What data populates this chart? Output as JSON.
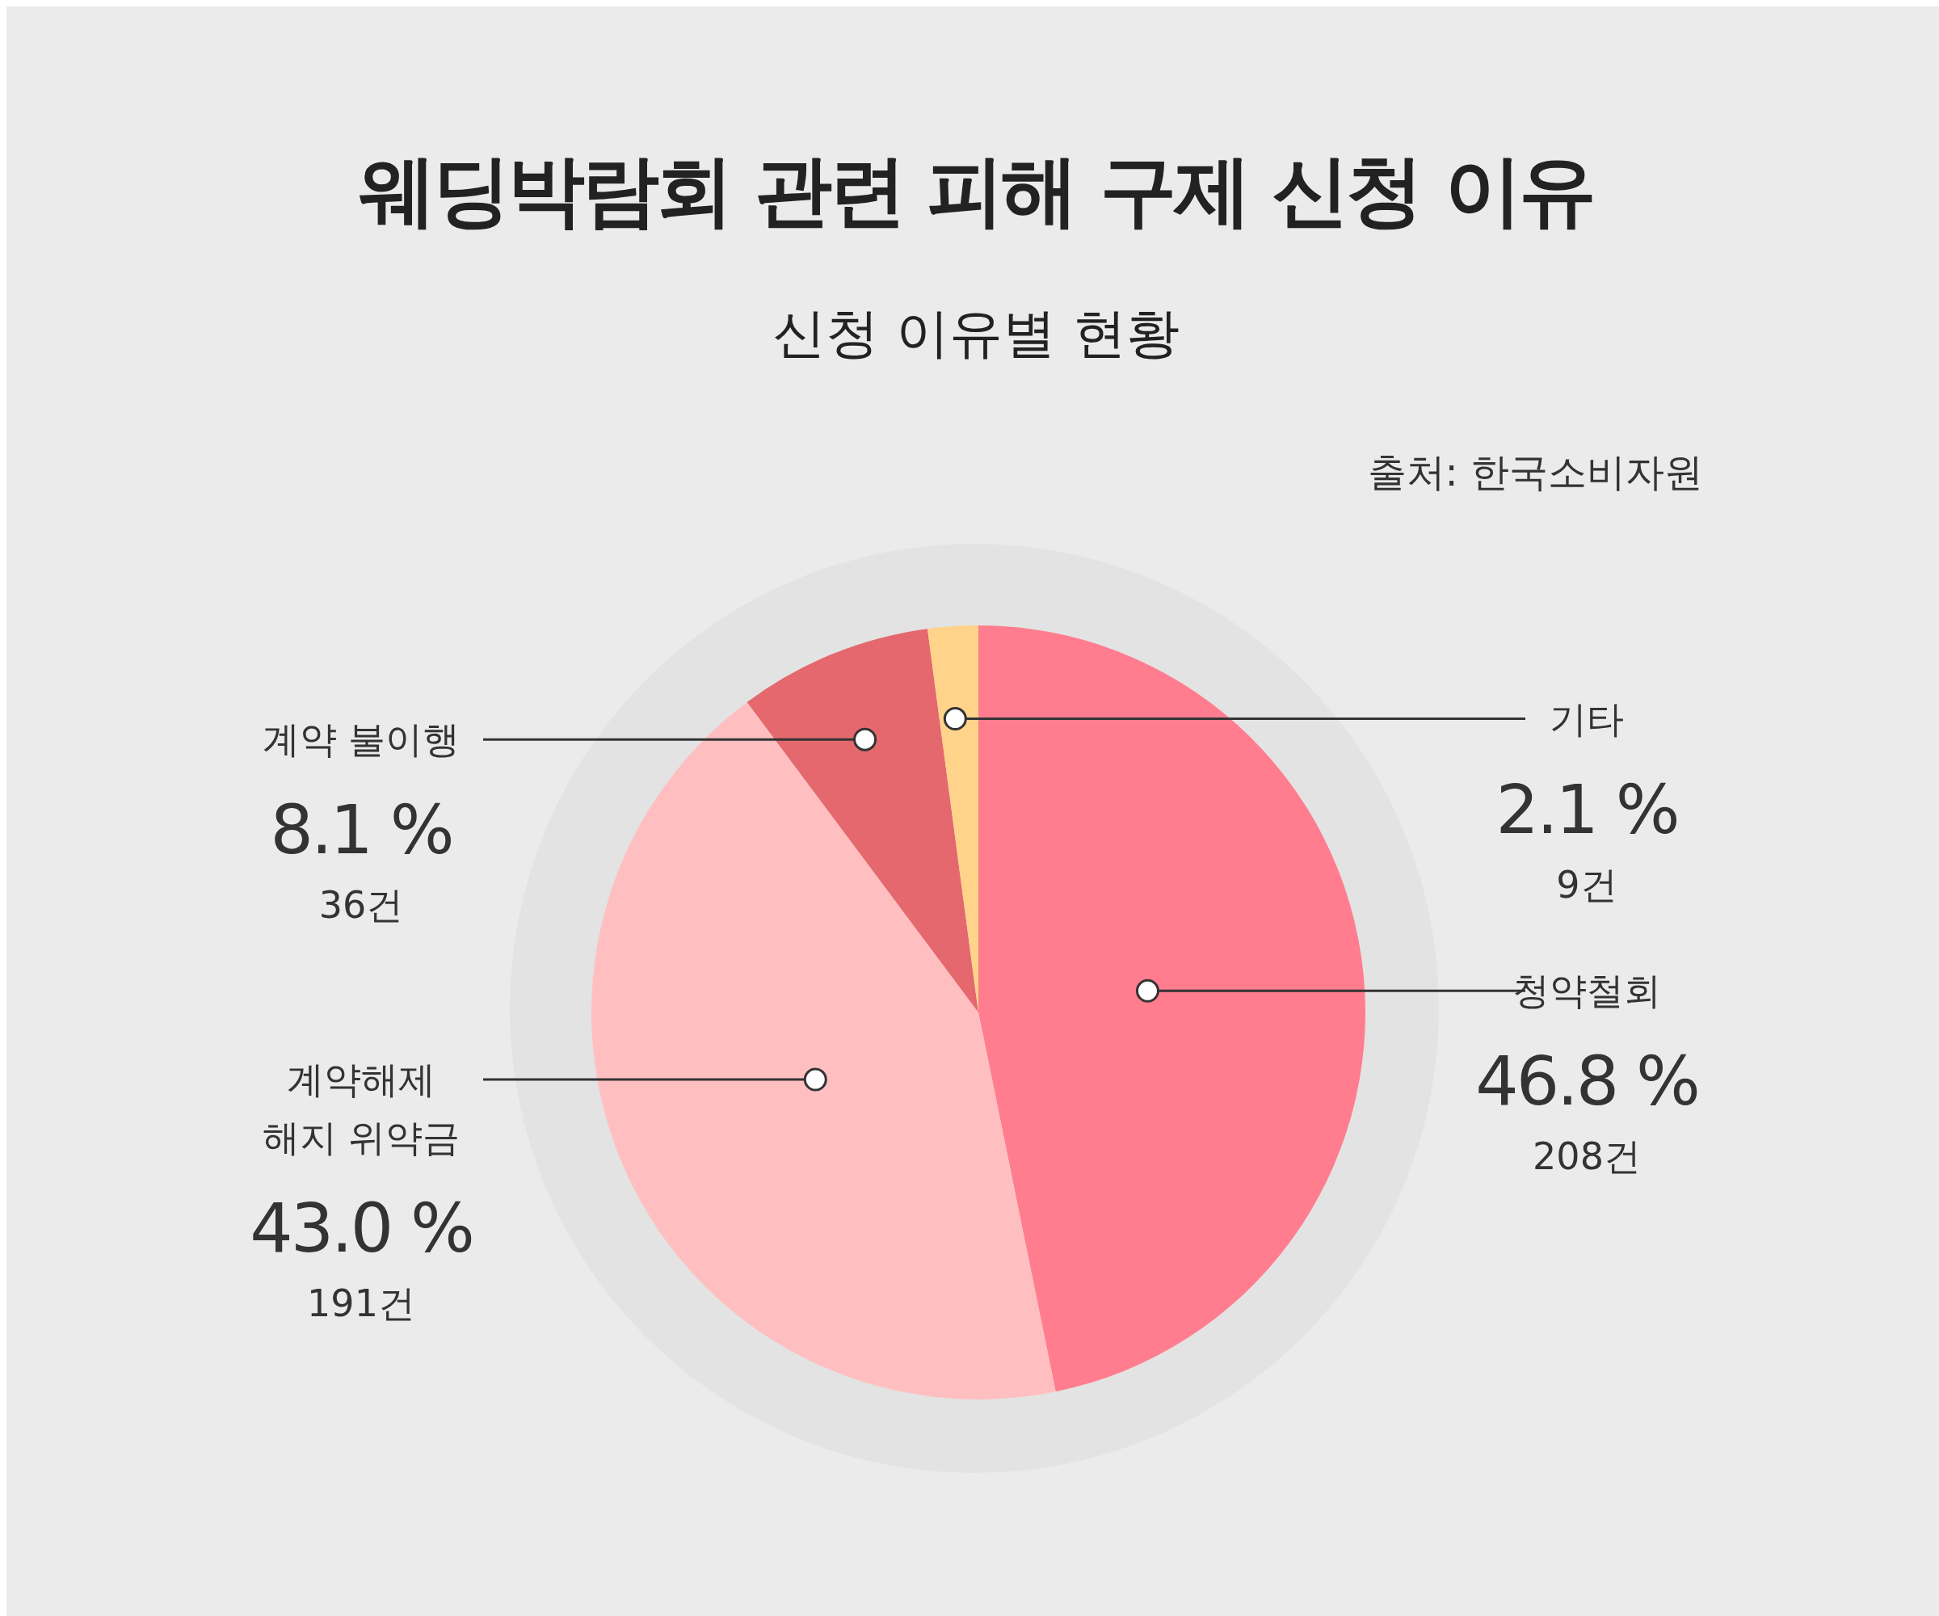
{
  "chart_data": {
    "type": "pie",
    "title": "웨딩박람회 관련 피해 구제 신청 이유",
    "subtitle": "신청 이유별 현황",
    "categories": [
      "청약철회",
      "계약해제\n해지 위약금",
      "계약 불이행",
      "기타"
    ],
    "values": [
      46.8,
      43.0,
      8.1,
      2.1
    ],
    "value_labels": [
      "46.8 %",
      "43.0 %",
      "8.1 %",
      "2.1 %"
    ],
    "colors": [
      "#ff7d8f",
      "#ffbfc0",
      "#e4686e",
      "#ffd38a"
    ],
    "annotations": [
      "출처: 한국소비자원",
      {
        "text": "208건"
      },
      {
        "text": "191건"
      },
      {
        "text": "36건"
      },
      {
        "text": "9건"
      }
    ],
    "legend": false
  }
}
